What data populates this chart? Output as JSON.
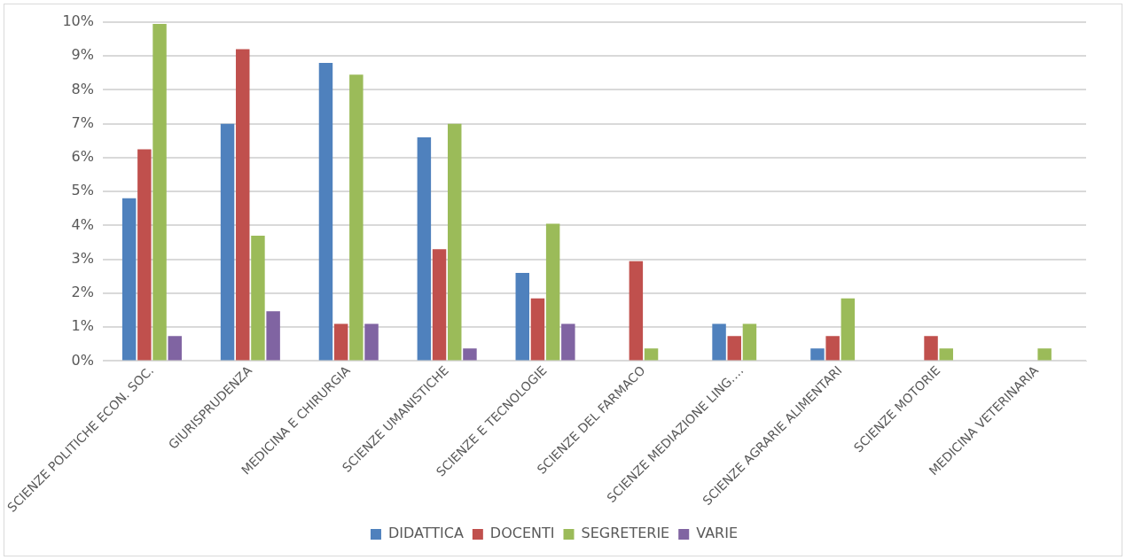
{
  "chart_data": {
    "type": "bar",
    "categories": [
      "SCIENZE POLITICHE ECON. SOC.",
      "GIURISPRUDENZA",
      "MEDICINA E CHIRURGIA",
      "SCIENZE UMANISTICHE",
      "SCIENZE E TECNOLOGIE",
      "SCIENZE DEL FARMACO",
      "SCIENZE MEDIAZIONE LING.…",
      "SCIENZE AGRARIE ALIMENTARI",
      "SCIENZE MOTORIE",
      "MEDICINA VETERINARIA"
    ],
    "series": [
      {
        "name": "DIDATTICA",
        "color": "#4f81bd",
        "values": [
          4.8,
          7.0,
          8.8,
          6.6,
          2.6,
          0,
          1.1,
          0.37,
          0,
          0
        ]
      },
      {
        "name": "DOCENTI",
        "color": "#c0504d",
        "values": [
          6.25,
          9.2,
          1.1,
          3.3,
          1.85,
          2.95,
          0.74,
          0.74,
          0.74,
          0
        ]
      },
      {
        "name": "SEGRETERIE",
        "color": "#9bbb59",
        "values": [
          9.95,
          3.7,
          8.45,
          7.0,
          4.05,
          0.37,
          1.1,
          1.85,
          0.37,
          0.37
        ]
      },
      {
        "name": "VARIE",
        "color": "#8064a2",
        "values": [
          0.74,
          1.47,
          1.1,
          0.37,
          1.1,
          0,
          0,
          0,
          0,
          0
        ]
      }
    ],
    "ylim": [
      0,
      10
    ],
    "yticks": [
      {
        "value": 0,
        "label": "0%"
      },
      {
        "value": 1,
        "label": "1%"
      },
      {
        "value": 2,
        "label": "2%"
      },
      {
        "value": 3,
        "label": "3%"
      },
      {
        "value": 4,
        "label": "4%"
      },
      {
        "value": 5,
        "label": "5%"
      },
      {
        "value": 6,
        "label": "6%"
      },
      {
        "value": 7,
        "label": "7%"
      },
      {
        "value": 8,
        "label": "8%"
      },
      {
        "value": 9,
        "label": "9%"
      },
      {
        "value": 10,
        "label": "10%"
      }
    ],
    "grid": "y",
    "legend": "bottom"
  }
}
